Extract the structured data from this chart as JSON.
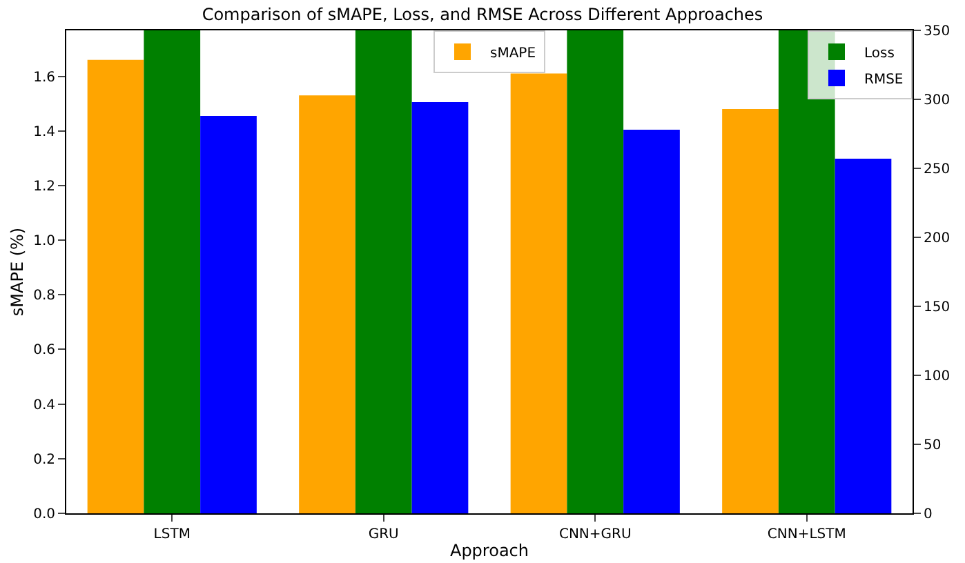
{
  "chart_data": {
    "type": "bar",
    "title": "Comparison of sMAPE, Loss, and RMSE Across Different Approaches",
    "xlabel": "Approach",
    "ylabel": "sMAPE (%)",
    "categories": [
      "LSTM",
      "GRU",
      "CNN+GRU",
      "CNN+LSTM"
    ],
    "series": [
      {
        "name": "sMAPE",
        "color": "#ffa500",
        "values": [
          1.66,
          1.53,
          1.61,
          1.48
        ]
      },
      {
        "name": "Loss",
        "color": "#008000",
        "axis": "y2",
        "values": [
          350,
          350,
          350,
          350
        ]
      },
      {
        "name": "RMSE",
        "color": "#0000ff",
        "axis": "y2",
        "values": [
          288,
          298,
          278,
          257
        ]
      }
    ],
    "ylim": [
      0,
      1.768
    ],
    "yticks": [
      {
        "value": 0,
        "label": "0.0"
      },
      {
        "value": 0.2,
        "label": "0.2"
      },
      {
        "value": 0.4,
        "label": "0.4"
      },
      {
        "value": 0.6,
        "label": "0.6"
      },
      {
        "value": 0.8,
        "label": "0.8"
      },
      {
        "value": 1,
        "label": "1.0"
      },
      {
        "value": 1.2,
        "label": "1.2"
      },
      {
        "value": 1.4,
        "label": "1.4"
      },
      {
        "value": 1.6,
        "label": "1.6"
      }
    ],
    "y2lim": [
      0,
      350
    ],
    "y2ticks": [
      0,
      50,
      100,
      150,
      200,
      250,
      300,
      350
    ],
    "legend": "top",
    "grid": false
  }
}
